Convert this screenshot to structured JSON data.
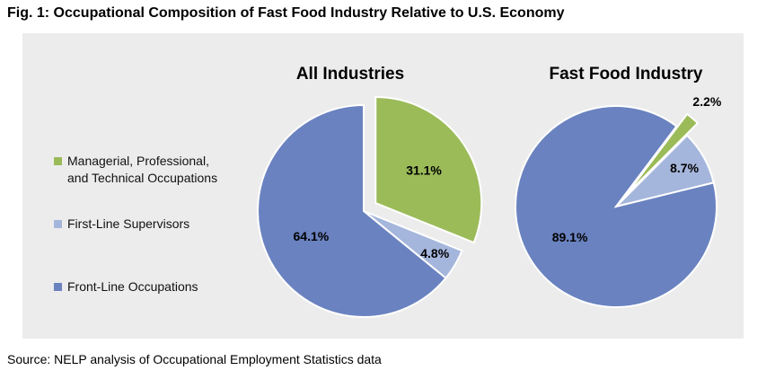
{
  "figure": {
    "title": "Fig. 1: Occupational Composition of Fast Food Industry Relative to U.S. Economy",
    "source": "Source: NELP analysis of Occupational Employment Statistics data"
  },
  "legend": [
    {
      "label": "Managerial, Professional,\nand Technical Occupations",
      "color": "#9bbb59"
    },
    {
      "label": "First-Line Supervisors",
      "color": "#a5b6dc"
    },
    {
      "label": "Front-Line Occupations",
      "color": "#6a82c0"
    }
  ],
  "chart_data": [
    {
      "type": "pie",
      "title": "All Industries",
      "categories": [
        "Managerial, Professional, and Technical Occupations",
        "First-Line Supervisors",
        "Front-Line Occupations"
      ],
      "values": [
        31.1,
        4.8,
        64.1
      ],
      "labels": [
        "31.1%",
        "4.8%",
        "64.1%"
      ],
      "exploded": "Managerial, Professional, and Technical Occupations"
    },
    {
      "type": "pie",
      "title": "Fast Food Industry",
      "categories": [
        "Managerial, Professional, and Technical Occupations",
        "First-Line Supervisors",
        "Front-Line Occupations"
      ],
      "values": [
        2.2,
        8.7,
        89.1
      ],
      "labels": [
        "2.2%",
        "8.7%",
        "89.1%"
      ],
      "exploded": "Managerial, Professional, and Technical Occupations"
    }
  ]
}
